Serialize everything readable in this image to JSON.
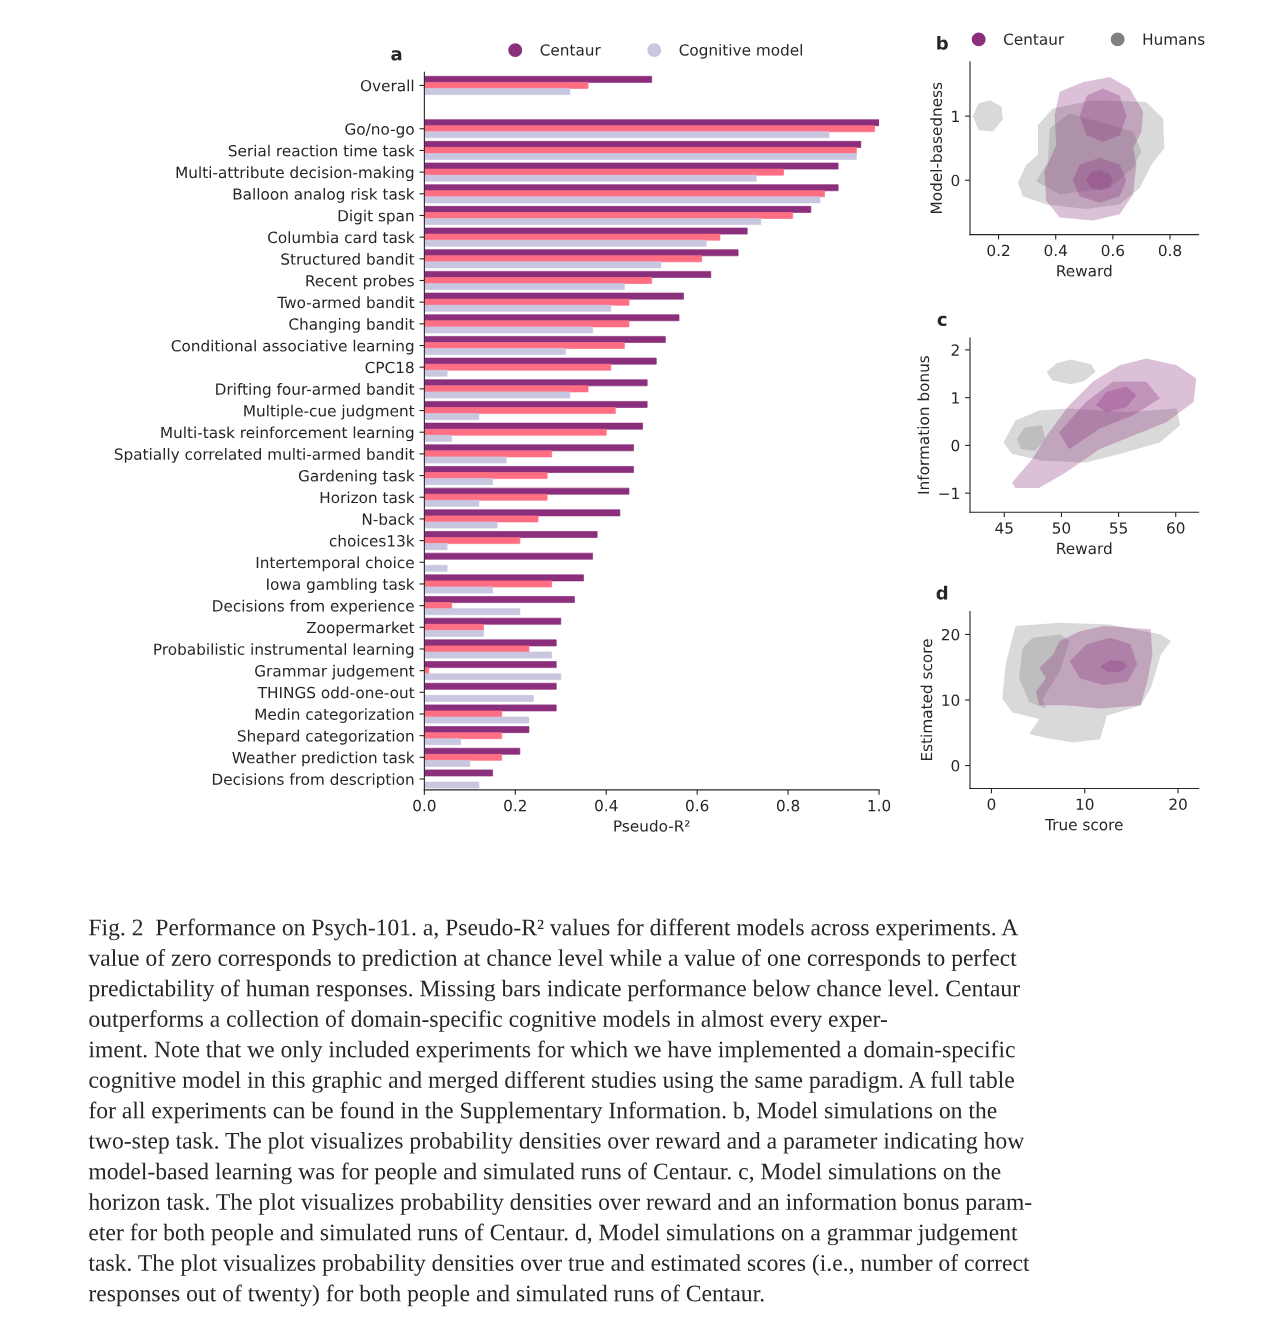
{
  "chart_data": [
    {
      "type": "bar",
      "orientation": "horizontal",
      "title": "a",
      "xlabel": "Pseudo-R²",
      "legend": "top",
      "grid": false,
      "categories": [
        "Overall",
        null,
        "Go/no-go",
        "Serial reaction time task",
        "Multi-attribute decision-making",
        "Balloon analog risk task",
        "Digit span",
        "Columbia card task",
        "Structured bandit",
        "Recent probes",
        "Two-armed bandit",
        "Changing bandit",
        "Conditional associative learning",
        "CPC18",
        "Drifting four-armed bandit",
        "Multiple-cue judgment",
        "Multi-task reinforcement learning",
        "Spatially correlated multi-armed bandit",
        "Gardening task",
        "Horizon task",
        "N-back",
        "choices13k",
        "Intertemporal choice",
        "Iowa gambling task",
        "Decisions from experience",
        "Zoopermarket",
        "Probabilistic instrumental learning",
        "Grammar judgement",
        "THINGS odd-one-out",
        "Medin categorization",
        "Shepard categorization",
        "Weather prediction task",
        "Decisions from description"
      ],
      "series": [
        {
          "name": "Centaur",
          "color": "#8b2f7c",
          "values": [
            0.5,
            null,
            1.0,
            0.96,
            0.91,
            0.91,
            0.85,
            0.71,
            0.69,
            0.63,
            0.57,
            0.56,
            0.53,
            0.51,
            0.49,
            0.49,
            0.48,
            0.46,
            0.46,
            0.45,
            0.43,
            0.38,
            0.37,
            0.35,
            0.33,
            0.3,
            0.29,
            0.29,
            0.29,
            0.29,
            0.23,
            0.21,
            0.15
          ]
        },
        {
          "color": "#ff6e83",
          "values": [
            0.36,
            null,
            0.99,
            0.95,
            0.79,
            0.88,
            0.81,
            0.65,
            0.61,
            0.5,
            0.45,
            0.45,
            0.44,
            0.41,
            0.36,
            0.42,
            0.4,
            0.28,
            0.27,
            0.27,
            0.25,
            0.21,
            null,
            0.28,
            0.06,
            0.13,
            0.23,
            0.01,
            null,
            0.17,
            0.17,
            0.17,
            null
          ]
        },
        {
          "name": "Cognitive model",
          "color": "#c9c6e0",
          "values": [
            0.32,
            null,
            0.89,
            0.95,
            0.73,
            0.87,
            0.74,
            0.62,
            0.52,
            0.44,
            0.41,
            0.37,
            0.31,
            0.05,
            0.32,
            0.12,
            0.06,
            0.18,
            0.15,
            0.12,
            0.16,
            0.05,
            0.05,
            0.15,
            0.21,
            0.13,
            0.28,
            0.3,
            0.24,
            0.23,
            0.08,
            0.1,
            0.12
          ]
        }
      ],
      "xlim": [
        0,
        1
      ],
      "xticks": [
        {
          "value": 0,
          "label": "0.0"
        },
        {
          "value": 0.2,
          "label": "0.2"
        },
        {
          "value": 0.4,
          "label": "0.4"
        },
        {
          "value": 0.6,
          "label": "0.6"
        },
        {
          "value": 0.8,
          "label": "0.8"
        },
        {
          "value": 1,
          "label": "1.0"
        }
      ],
      "annotations": [
        "Fig. 2  Performance on Psych-101. a, Pseudo-R² values for different models across experiments. A",
        "value of zero corresponds to prediction at chance level while a value of one corresponds to perfect",
        "predictability of human responses. Missing bars indicate performance below chance level. Centaur",
        "outperforms a collection of domain-specific cognitive models in almost every exper-",
        "iment. Note that we only included experiments for which we have implemented a domain-specific",
        "cognitive model in this graphic and merged different studies using the same paradigm. A full table",
        "for all experiments can be found in the Supplementary Information. b, Model simulations on the",
        "two-step task. The plot visualizes probability densities over reward and a parameter indicating how",
        "model-based learning was for people and simulated runs of Centaur. c, Model simulations on the",
        "horizon task. The plot visualizes probability densities over reward and an information bonus param-",
        "eter for both people and simulated runs of Centaur. d, Model simulations on a grammar judgement",
        "task. The plot visualizes probability densities over true and estimated scores (i.e., number of correct",
        "responses out of twenty) for both people and simulated runs of Centaur."
      ]
    },
    {
      "type": "area",
      "title": "b",
      "xlabel": "Reward",
      "ylabel": "Model-basedness",
      "legend": "top",
      "series": [
        {
          "name": "Humans",
          "color": "#808080",
          "x": [
            0.268,
            0.297,
            0.338,
            0.338,
            0.39,
            0.53,
            0.717,
            0.776,
            0.78,
            0.735,
            0.694,
            0.624,
            0.507,
            0.367,
            0.285
          ],
          "values": [
            -0.04,
            0.24,
            0.4,
            0.86,
            1.12,
            1.25,
            1.22,
            0.96,
            0.5,
            0.24,
            -0.12,
            -0.38,
            -0.45,
            -0.38,
            -0.25
          ]
        },
        {
          "color": "#808080",
          "x": [
            0.11,
            0.13,
            0.17,
            0.21,
            0.215,
            0.18,
            0.13
          ],
          "values": [
            1.0,
            1.2,
            1.25,
            1.15,
            0.95,
            0.76,
            0.78
          ]
        },
        {
          "color": "#808080",
          "x": [
            0.332,
            0.373,
            0.379,
            0.449,
            0.671,
            0.7,
            0.671,
            0.589,
            0.414
          ],
          "values": [
            -0.02,
            0.29,
            0.81,
            1.04,
            0.76,
            0.45,
            0.19,
            -0.12,
            -0.22
          ]
        },
        {
          "name": "Centaur",
          "color": "#8b2f7c",
          "x": [
            0.414,
            0.495,
            0.589,
            0.659,
            0.706,
            0.7,
            0.671,
            0.682,
            0.671,
            0.624,
            0.53,
            0.414,
            0.367,
            0.361,
            0.402,
            0.396
          ],
          "values": [
            1.38,
            1.53,
            1.61,
            1.43,
            1.07,
            0.76,
            0.5,
            0.24,
            -0.22,
            -0.53,
            -0.63,
            -0.58,
            -0.32,
            0.14,
            0.55,
            1.02
          ]
        },
        {
          "color": "#8b2f7c",
          "x": [
            0.484,
            0.508,
            0.565,
            0.624,
            0.647,
            0.624,
            0.565,
            0.508
          ],
          "values": [
            1.0,
            1.32,
            1.43,
            1.32,
            1.0,
            0.7,
            0.6,
            0.7
          ]
        },
        {
          "color": "#8b2f7c",
          "x": [
            0.46,
            0.484,
            0.554,
            0.624,
            0.647,
            0.624,
            0.554,
            0.484
          ],
          "values": [
            0,
            0.24,
            0.35,
            0.24,
            0,
            -0.25,
            -0.35,
            -0.25
          ]
        },
        {
          "color": "#8b2f7c",
          "x": [
            0.507,
            0.521,
            0.554,
            0.587,
            0.6,
            0.587,
            0.554,
            0.521
          ],
          "values": [
            0,
            0.11,
            0.16,
            0.11,
            0,
            -0.11,
            -0.16,
            -0.11
          ]
        }
      ],
      "xlim": [
        0.1,
        0.9
      ],
      "xticks": [
        0.2,
        0.4,
        0.6,
        0.8
      ],
      "ylim": [
        -0.85,
        1.85
      ],
      "yticks": [
        0,
        1
      ]
    },
    {
      "type": "area",
      "title": "c",
      "xlabel": "Reward",
      "ylabel": "Information bonus",
      "series": [
        {
          "color": "#808080",
          "x": [
            44.94,
            45.97,
            48.03,
            50.68,
            55.68,
            60.09,
            60.38,
            58.62,
            55.09,
            52.15,
            48.32,
            45.68
          ],
          "values": [
            0.06,
            0.52,
            0.73,
            0.77,
            0.7,
            0.77,
            0.42,
            0.06,
            -0.18,
            -0.36,
            -0.32,
            -0.18
          ]
        },
        {
          "color": "#808080",
          "x": [
            48.7,
            49.6,
            50.8,
            52.6,
            53.0,
            52.0,
            50.8,
            49.2
          ],
          "values": [
            1.54,
            1.72,
            1.8,
            1.7,
            1.54,
            1.35,
            1.28,
            1.36
          ]
        },
        {
          "color": "#808080",
          "x": [
            46.1,
            46.8,
            48.3,
            48.6,
            47.7,
            46.5
          ],
          "values": [
            0.13,
            0.38,
            0.42,
            0.13,
            -0.11,
            -0.08
          ]
        },
        {
          "color": "#8b2f7c",
          "x": [
            45.68,
            47.44,
            48.91,
            50.68,
            52.74,
            55.09,
            57.44,
            60.09,
            61.8,
            61.56,
            59.21,
            56.26,
            53.32,
            50.38,
            48.03,
            45.97
          ],
          "values": [
            -0.78,
            -0.29,
            0.27,
            0.84,
            1.33,
            1.68,
            1.82,
            1.68,
            1.4,
            0.91,
            0.49,
            0.2,
            -0.08,
            -0.57,
            -0.89,
            -0.89
          ]
        },
        {
          "color": "#8b2f7c",
          "x": [
            49.79,
            52.15,
            54.5,
            57.44,
            58.62,
            56.26,
            53.32,
            50.68
          ],
          "values": [
            0.27,
            0.91,
            1.33,
            1.33,
            0.98,
            0.63,
            0.35,
            -0.08
          ]
        },
        {
          "color": "#8b2f7c",
          "x": [
            53.03,
            53.91,
            55.68,
            56.56,
            55.68,
            53.91
          ],
          "values": [
            0.84,
            1.12,
            1.23,
            1.05,
            0.8,
            0.7
          ]
        }
      ],
      "xlim": [
        42,
        62
      ],
      "xticks": [
        45,
        50,
        55,
        60
      ],
      "ylim": [
        -1.4,
        2.25
      ],
      "yticks": [
        {
          "value": -1,
          "label": "−1"
        },
        0,
        1,
        2
      ]
    },
    {
      "type": "area",
      "title": "d",
      "xlabel": "True score",
      "ylabel": "Estimated score",
      "series": [
        {
          "color": "#808080",
          "x": [
            2.6,
            7.31,
            12.73,
            18.16,
            19.24,
            18.16,
            17.07,
            15.99,
            12.37,
            11.65,
            8.75,
            5.5,
            4.05,
            5.14,
            2.24,
            1.16,
            1.52,
            2.24
          ],
          "values": [
            21.3,
            21.8,
            21.5,
            20.0,
            19.0,
            16.9,
            11.8,
            9.2,
            7.6,
            4.0,
            3.5,
            4.3,
            4.8,
            7.1,
            8.1,
            10.2,
            15.4,
            19.5
          ]
        },
        {
          "color": "#808080",
          "x": [
            4.41,
            7.31,
            8.39,
            7.31,
            5.5,
            5.86,
            4.05,
            2.97,
            3.33
          ],
          "values": [
            19.5,
            20.0,
            19.0,
            14.4,
            10.2,
            8.7,
            9.7,
            13.3,
            17.9
          ]
        },
        {
          "color": "#8b2f7c",
          "x": [
            7.31,
            9.48,
            12.01,
            17.07,
            17.25,
            16.7,
            15.99,
            11.65,
            8.03,
            5.14,
            4.77,
            5.86,
            5.14,
            6.58
          ],
          "values": [
            19.0,
            20.5,
            21.3,
            20.8,
            16.9,
            12.8,
            9.2,
            8.7,
            9.2,
            9.2,
            11.3,
            13.3,
            14.9,
            16.9
          ]
        },
        {
          "color": "#8b2f7c",
          "x": [
            8.39,
            10.2,
            12.73,
            14.9,
            15.62,
            14.54,
            12.01,
            9.48
          ],
          "values": [
            15.9,
            18.5,
            19.5,
            18.5,
            15.4,
            12.8,
            12.3,
            13.3
          ]
        },
        {
          "color": "#8b2f7c",
          "x": [
            11.65,
            12.73,
            14.18,
            14.54,
            13.82,
            12.37
          ],
          "values": [
            15.1,
            16.1,
            15.9,
            15.1,
            14.3,
            14.3
          ]
        }
      ],
      "xlim": [
        -2.3,
        22.2
      ],
      "xticks": [
        0,
        10,
        20
      ],
      "ylim": [
        -3.5,
        23.5
      ],
      "yticks": [
        0,
        10,
        20
      ]
    }
  ]
}
